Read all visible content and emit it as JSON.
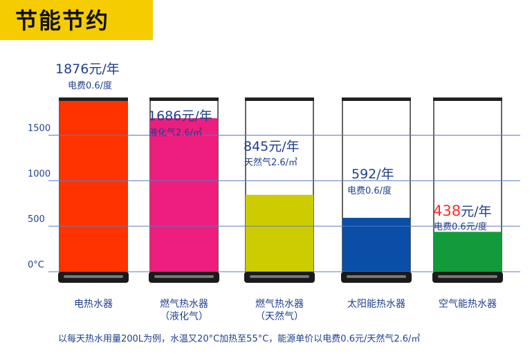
{
  "title": "节能节约",
  "chart_data": {
    "type": "bar",
    "y_ticks": [
      {
        "value": 0,
        "label": "0°C"
      },
      {
        "value": 500,
        "label": "500"
      },
      {
        "value": 1000,
        "label": "1000"
      },
      {
        "value": 1500,
        "label": "1500"
      }
    ],
    "ylim": [
      0,
      1876
    ],
    "grid": true,
    "categories": [
      {
        "label": "电热水器",
        "sublabel": ""
      },
      {
        "label": "燃气热水器",
        "sublabel": "（液化气）"
      },
      {
        "label": "燃气热水器",
        "sublabel": "（天然气）"
      },
      {
        "label": "太阳能热水器",
        "sublabel": ""
      },
      {
        "label": "空气能热水器",
        "sublabel": ""
      }
    ],
    "values": [
      1876,
      1686,
      845,
      592,
      438
    ],
    "price_labels": [
      {
        "number": "1876",
        "unit": "元/年",
        "rate": "电费0.6/度"
      },
      {
        "number": "1686",
        "unit": "元/年",
        "rate": "液化气2.6/㎥"
      },
      {
        "number": "845",
        "unit": "元/年",
        "rate": "天然气2.6/㎥"
      },
      {
        "number": "592",
        "unit": "/年",
        "rate": "电费0.6/度"
      },
      {
        "number": "438",
        "unit": "元/年",
        "rate": "电费0.6元/度"
      }
    ],
    "colors": [
      "#ff3300",
      "#ee1e7e",
      "#cccc00",
      "#0a4ea8",
      "#129a3b"
    ],
    "highlight_color": "#ff2a2a",
    "footnote": "以每天热水用量200L为例，水温又20°C加热至55°C，能源单价以电费0.6元/天然气2.6/㎥"
  }
}
